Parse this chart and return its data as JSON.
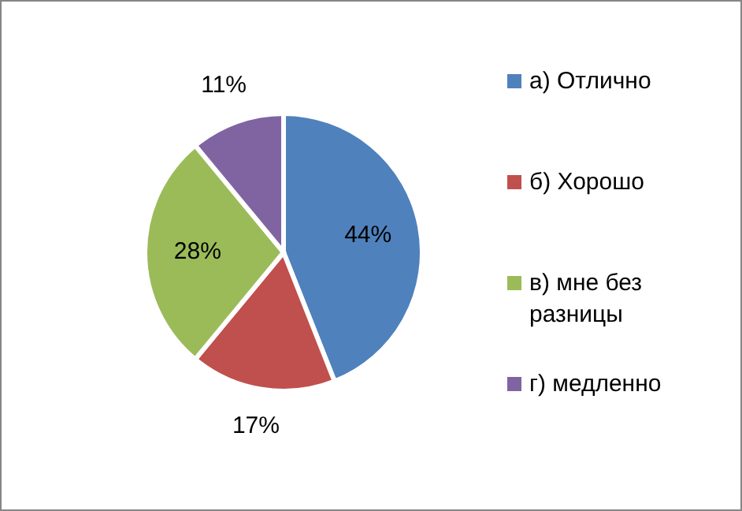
{
  "chart_data": {
    "type": "pie",
    "categories": [
      "а) Отлично",
      "б) Хорошо",
      "в) мне без разницы",
      "г) медленно"
    ],
    "values": [
      44,
      17,
      28,
      11
    ],
    "colors": [
      "#4f81bd",
      "#c0504d",
      "#9bbb59",
      "#8064a2"
    ],
    "value_labels": [
      "44%",
      "17%",
      "28%",
      "11%"
    ],
    "legend": "right"
  }
}
